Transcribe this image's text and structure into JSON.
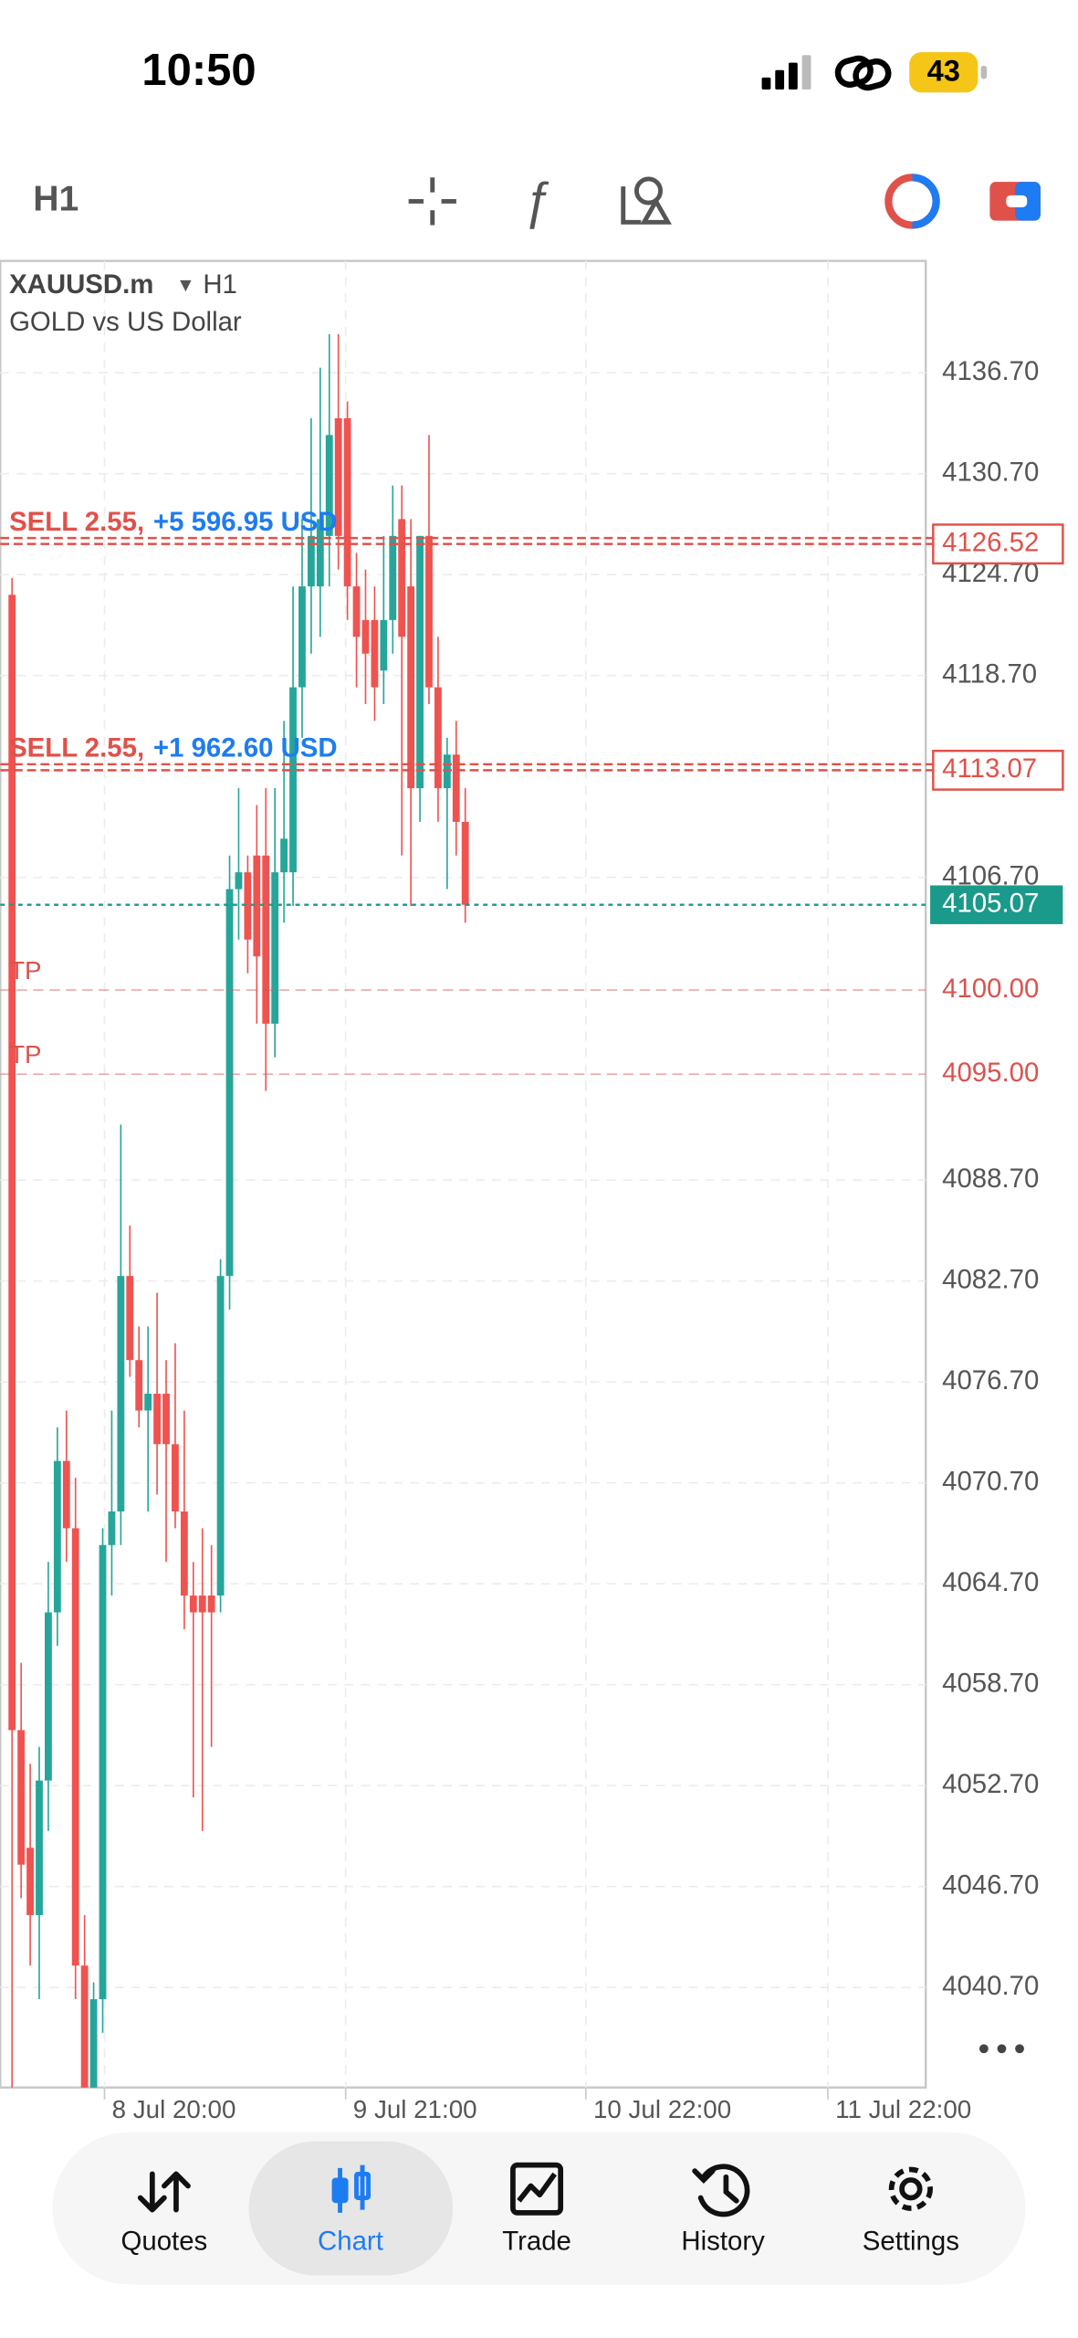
{
  "status_bar": {
    "time": "10:50",
    "battery": "43"
  },
  "toolbar": {
    "timeframe": "H1"
  },
  "chart_header": {
    "symbol": "XAUUSD.m",
    "timeframe": "H1",
    "description": "GOLD vs US Dollar"
  },
  "chart_data": {
    "type": "candlestick",
    "ohlc": [
      [
        4123.5,
        4124.5,
        4030,
        4056
      ],
      [
        4056,
        4060,
        4046,
        4048
      ],
      [
        4049,
        4054,
        4042,
        4045
      ],
      [
        4045,
        4055,
        4040,
        4053
      ],
      [
        4053,
        4066,
        4050,
        4063
      ],
      [
        4063,
        4074,
        4061,
        4072
      ],
      [
        4072,
        4075,
        4066,
        4068
      ],
      [
        4068,
        4071,
        4040,
        4042
      ],
      [
        4042,
        4045,
        4025,
        4028
      ],
      [
        4028,
        4041,
        4025,
        4040
      ],
      [
        4040,
        4068,
        4038,
        4067
      ],
      [
        4067,
        4075,
        4064,
        4069
      ],
      [
        4069,
        4092,
        4067,
        4083
      ],
      [
        4083,
        4086,
        4077,
        4078
      ],
      [
        4078,
        4080,
        4074,
        4075
      ],
      [
        4075,
        4080,
        4069,
        4076
      ],
      [
        4076,
        4082,
        4070,
        4073
      ],
      [
        4076,
        4078,
        4066,
        4073
      ],
      [
        4073,
        4079,
        4068,
        4069
      ],
      [
        4069,
        4075,
        4062,
        4064
      ],
      [
        4064,
        4066,
        4052,
        4063
      ],
      [
        4064,
        4068,
        4050,
        4063
      ],
      [
        4064,
        4067,
        4055,
        4063
      ],
      [
        4064,
        4084,
        4063,
        4083
      ],
      [
        4083,
        4108,
        4081,
        4106
      ],
      [
        4106,
        4112,
        4103,
        4107
      ],
      [
        4107,
        4108,
        4101,
        4103
      ],
      [
        4108,
        4111,
        4098,
        4102
      ],
      [
        4108,
        4112,
        4094,
        4098
      ],
      [
        4098,
        4112,
        4096,
        4107
      ],
      [
        4107,
        4116,
        4104,
        4109
      ],
      [
        4107,
        4124,
        4105,
        4118
      ],
      [
        4118,
        4128,
        4115,
        4124
      ],
      [
        4124,
        4134,
        4120,
        4127
      ],
      [
        4124,
        4137,
        4121,
        4128
      ],
      [
        4127,
        4139,
        4124,
        4133
      ],
      [
        4134,
        4139,
        4125,
        4127
      ],
      [
        4134,
        4135,
        4122,
        4124
      ],
      [
        4124,
        4126,
        4118,
        4121
      ],
      [
        4122,
        4125,
        4117,
        4120
      ],
      [
        4122,
        4124,
        4116,
        4118
      ],
      [
        4119,
        4127,
        4117,
        4122
      ],
      [
        4122,
        4130,
        4120,
        4127
      ],
      [
        4128,
        4130,
        4108,
        4121
      ],
      [
        4124,
        4128,
        4105,
        4112
      ],
      [
        4112,
        4127,
        4110,
        4127
      ],
      [
        4127,
        4133,
        4117,
        4118
      ],
      [
        4118,
        4121,
        4110,
        4112
      ],
      [
        4112,
        4115,
        4106,
        4114
      ],
      [
        4114,
        4116,
        4108,
        4110
      ],
      [
        4110,
        4112,
        4104,
        4105.07
      ]
    ],
    "up_color": "#26a69a",
    "down_color": "#ef5350",
    "xlim": [
      -1.3,
      100.8
    ],
    "xticks": [
      {
        "value": 10.2,
        "label": "8 Jul 20:00"
      },
      {
        "value": 36.8,
        "label": "9 Jul 21:00"
      },
      {
        "value": 63.3,
        "label": "10 Jul 22:00"
      },
      {
        "value": 90,
        "label": "11 Jul 22:00"
      }
    ],
    "ylim": [
      4034.75,
      4143.35
    ],
    "yticks": [
      {
        "value": 4136.7,
        "label": "4136.70"
      },
      {
        "value": 4130.7,
        "label": "4130.70"
      },
      {
        "value": 4124.7,
        "label": "4124.70"
      },
      {
        "value": 4118.7,
        "label": "4118.70"
      },
      {
        "value": 4106.7,
        "label": "4106.70"
      },
      {
        "value": 4088.7,
        "label": "4088.70"
      },
      {
        "value": 4082.7,
        "label": "4082.70"
      },
      {
        "value": 4076.7,
        "label": "4076.70"
      },
      {
        "value": 4070.7,
        "label": "4070.70"
      },
      {
        "value": 4064.7,
        "label": "4064.70"
      },
      {
        "value": 4058.7,
        "label": "4058.70"
      },
      {
        "value": 4052.7,
        "label": "4052.70"
      },
      {
        "value": 4046.7,
        "label": "4046.70"
      },
      {
        "value": 4040.7,
        "label": "4040.70"
      }
    ],
    "grid": true,
    "orders": [
      {
        "label": "SELL 2.55,",
        "profit": "+5 596.95 USD",
        "value": 4126.52,
        "price_label": "4126.52"
      },
      {
        "label": "SELL 2.55,",
        "profit": "+1 962.60 USD",
        "value": 4113.07,
        "price_label": "4113.07"
      }
    ],
    "take_profits": [
      {
        "label": "TP",
        "value": 4100,
        "price_label": "4100.00"
      },
      {
        "label": "TP",
        "value": 4095,
        "price_label": "4095.00"
      }
    ],
    "current_price": {
      "value": 4105.07,
      "label": "4105.07"
    },
    "order_color": "#e0514a",
    "profit_color": "#1e7cf2",
    "tp_color": "#d9534f",
    "price_line_color": "#1a9a8a"
  },
  "tabs": [
    {
      "label": "Quotes"
    },
    {
      "label": "Chart"
    },
    {
      "label": "Trade"
    },
    {
      "label": "History"
    },
    {
      "label": "Settings"
    }
  ],
  "active_tab": 1
}
